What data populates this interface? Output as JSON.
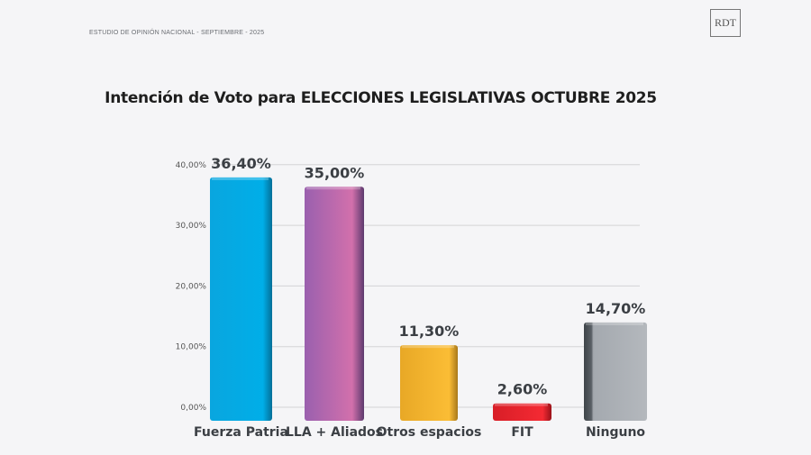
{
  "header": {
    "subtitle": "ESTUDIO DE OPINIÓN NACIONAL - SEPTIEMBRE - 2025",
    "logo_text": "RDT"
  },
  "chart_data": {
    "type": "bar",
    "title": "Intención de Voto para ELECCIONES LEGISLATIVAS OCTUBRE 2025",
    "categories": [
      "Fuerza Patria",
      "LLA + Aliados",
      "Otros espacios",
      "FIT",
      "Ninguno"
    ],
    "values": [
      36.4,
      35.0,
      11.3,
      2.6,
      14.7
    ],
    "data_labels": [
      "36,40%",
      "35,00%",
      "11,30%",
      "2,60%",
      "14,70%"
    ],
    "colors": [
      "#04a9e2",
      "#b565ab",
      "#f5b72f",
      "#e9242e",
      "#a7abb1"
    ],
    "ylim": [
      0,
      40
    ],
    "yticks": [
      0,
      10,
      20,
      30,
      40
    ],
    "ytick_labels": [
      "0,00%",
      "10,00%",
      "20,00%",
      "30,00%",
      "40,00%"
    ],
    "grid": true,
    "xlabel": "",
    "ylabel": ""
  }
}
